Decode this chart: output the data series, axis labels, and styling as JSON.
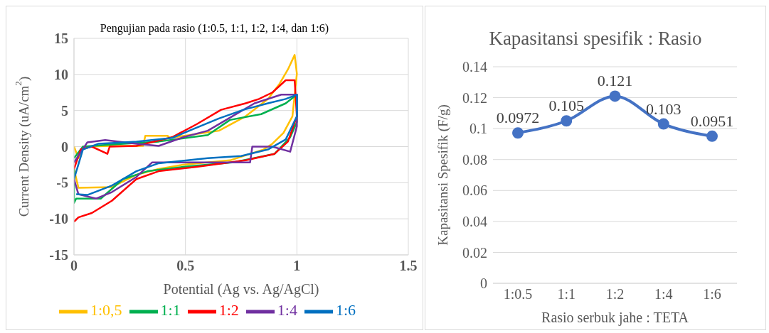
{
  "chart_data": [
    {
      "type": "line",
      "title": "Pengujian pada rasio (1:0.5, 1:1, 1:2, 1:4, dan 1:6)",
      "xlabel": "Potential (Ag vs. Ag/AgCl)",
      "ylabel": "Current Density (uA/cm$^{2}$)",
      "xlim": [
        0,
        1.5
      ],
      "xticks": [
        0,
        0.5,
        1,
        1.5
      ],
      "ylim": [
        -15,
        15
      ],
      "yticks": [
        -15,
        -10,
        -5,
        0,
        5,
        10,
        15
      ],
      "grid": true,
      "legend": "bottom",
      "line_style": "solid",
      "series": [
        {
          "name": "1:0,5",
          "color": "#ffc000",
          "x": [
            0,
            0.02,
            0.04,
            0.17,
            0.31,
            0.32,
            0.42,
            0.43,
            0.65,
            0.77,
            0.87,
            0.92,
            0.96,
            0.99,
            1.0,
            0.98,
            0.94,
            0.89,
            0.85,
            0.7,
            0.49,
            0.38,
            0.28,
            0.17,
            0.02,
            0
          ],
          "values": [
            0,
            -1.6,
            0,
            0.1,
            0.1,
            1.5,
            1.5,
            1.2,
            2.2,
            4.2,
            6.6,
            8.6,
            10.7,
            12.7,
            10.1,
            4.2,
            1.9,
            0.4,
            -0.4,
            -1.9,
            -2.5,
            -3.1,
            -3.9,
            -5.6,
            -5.7,
            -3.1
          ]
        },
        {
          "name": "1:1",
          "color": "#00b050",
          "x": [
            0,
            0.04,
            0.17,
            0.38,
            0.6,
            0.7,
            0.84,
            0.95,
            1.0,
            1.0,
            0.97,
            0.9,
            0.71,
            0.49,
            0.33,
            0.22,
            0.12,
            0.01,
            0,
            0
          ],
          "values": [
            -1.6,
            0,
            0.3,
            0.7,
            1.6,
            3.7,
            4.5,
            6.0,
            7.2,
            3.4,
            1.3,
            -1.0,
            -2.2,
            -2.8,
            -3.4,
            -4.5,
            -7.2,
            -7.2,
            -7.8,
            -3.1
          ]
        },
        {
          "name": "1:2",
          "color": "#ff0000",
          "x": [
            0,
            0.03,
            0.08,
            0.15,
            0.16,
            0.28,
            0.44,
            0.55,
            0.66,
            0.77,
            0.83,
            0.89,
            0.95,
            0.99,
            1.0,
            0.96,
            0.9,
            0.77,
            0.55,
            0.38,
            0.28,
            0.17,
            0.08,
            0.02,
            0
          ],
          "values": [
            -3.1,
            -0.4,
            0,
            -1.0,
            0,
            0.1,
            1.3,
            3.1,
            5.1,
            6.0,
            6.6,
            7.5,
            9.2,
            9.2,
            4.2,
            0.7,
            -1.0,
            -1.9,
            -2.8,
            -3.4,
            -4.5,
            -7.5,
            -9.2,
            -9.8,
            -10.4
          ]
        },
        {
          "name": "1:4",
          "color": "#7030a0",
          "x": [
            0,
            0.06,
            0.14,
            0.28,
            0.38,
            0.49,
            0.6,
            0.71,
            0.81,
            0.93,
            1.0,
            1.0,
            0.97,
            0.89,
            0.8,
            0.79,
            0.49,
            0.35,
            0.28,
            0.17,
            0.1,
            0.02,
            0
          ],
          "values": [
            -2.2,
            0.6,
            0.9,
            0.4,
            0.1,
            1.3,
            2.2,
            4.2,
            6.0,
            7.2,
            7.2,
            2.8,
            -0.7,
            0,
            0,
            -2.2,
            -2.2,
            -2.2,
            -4.2,
            -6.3,
            -7.2,
            -6.6,
            -4.5
          ]
        },
        {
          "name": "1:6",
          "color": "#0070c0",
          "x": [
            0,
            0.04,
            0.11,
            0.28,
            0.44,
            0.54,
            0.65,
            0.76,
            0.87,
            0.95,
            1.0,
            1.0,
            0.95,
            0.87,
            0.75,
            0.6,
            0.38,
            0.28,
            0.17,
            0.06,
            0.01
          ],
          "values": [
            -4.5,
            -0.4,
            0.4,
            0.7,
            1.2,
            2.5,
            3.9,
            5.1,
            6.0,
            6.6,
            7.2,
            4.2,
            1.0,
            -0.4,
            -1.3,
            -1.6,
            -2.3,
            -3.4,
            -5.4,
            -6.7,
            -6.6
          ]
        }
      ]
    },
    {
      "type": "line",
      "title": "Kapasitansi spesifik : Rasio",
      "xlabel": "Rasio serbuk jahe : TETA",
      "ylabel": "Kapasitansi Spesifik (F/g)",
      "categories": [
        "1:0.5",
        "1:1",
        "1:2",
        "1:4",
        "1:6"
      ],
      "ylim": [
        0,
        0.14
      ],
      "yticks": [
        0,
        0.02,
        0.04,
        0.06,
        0.08,
        0.1,
        0.12,
        0.14
      ],
      "grid": "y",
      "marker": "circle",
      "data_labels": true,
      "series": [
        {
          "color": "#4472c4",
          "values": [
            0.0972,
            0.105,
            0.121,
            0.103,
            0.0951
          ]
        }
      ]
    }
  ]
}
